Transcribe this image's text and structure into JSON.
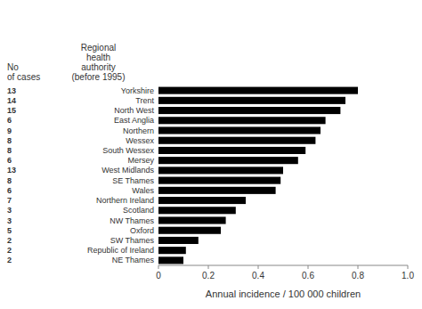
{
  "chart_data": {
    "type": "bar",
    "orientation": "horizontal",
    "categories": [
      "Yorkshire",
      "Trent",
      "North West",
      "East Anglia",
      "Northern",
      "Wessex",
      "South Wessex",
      "Mersey",
      "West Midlands",
      "SE Thames",
      "Wales",
      "Northern Ireland",
      "Scotland",
      "NW Thames",
      "Oxford",
      "SW Thames",
      "Republic of Ireland",
      "NE Thames"
    ],
    "values": [
      0.8,
      0.75,
      0.73,
      0.67,
      0.65,
      0.63,
      0.59,
      0.56,
      0.5,
      0.49,
      0.47,
      0.35,
      0.31,
      0.27,
      0.25,
      0.16,
      0.11,
      0.1
    ],
    "no_cases": [
      13,
      14,
      15,
      6,
      9,
      8,
      8,
      6,
      13,
      8,
      6,
      7,
      3,
      3,
      5,
      2,
      2,
      2
    ],
    "color": "#000000",
    "xlabel": "Annual incidence / 100 000 children",
    "annotations": [
      "No\nof cases",
      "Regional\nhealth\nauthority\n(before 1995)"
    ],
    "xlim": [
      0,
      1.0
    ],
    "xticks": [
      0,
      0.2,
      0.4,
      0.6,
      0.8,
      {
        "value": 1.0,
        "label": "1.0"
      }
    ],
    "grid": false
  }
}
